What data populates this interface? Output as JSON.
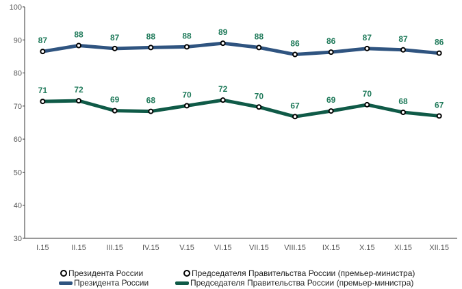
{
  "chart_data": {
    "type": "line",
    "title": "",
    "xlabel": "",
    "ylabel": "",
    "ylim": [
      30,
      100
    ],
    "y_ticks": [
      "100",
      "90",
      "80",
      "70",
      "60",
      "50",
      "40",
      "30"
    ],
    "categories": [
      "I.15",
      "II.15",
      "III.15",
      "IV.15",
      "V.15",
      "VI.15",
      "VII.15",
      "VIII.15",
      "IX.15",
      "X.15",
      "XI.15",
      "XII.15"
    ],
    "series": [
      {
        "name": "Президента России",
        "color": "#2f5480",
        "values": [
          86.5,
          88.3,
          87.4,
          87.7,
          87.9,
          89.0,
          87.7,
          85.6,
          86.3,
          87.4,
          87.0,
          86.0
        ],
        "labels": [
          "87",
          "88",
          "87",
          "88",
          "88",
          "89",
          "88",
          "86",
          "86",
          "87",
          "87",
          "86"
        ]
      },
      {
        "name": "Председателя Правительства России (премьер-министра)",
        "color": "#0f5a47",
        "values": [
          71.4,
          71.6,
          68.6,
          68.4,
          70.1,
          71.8,
          69.7,
          66.8,
          68.5,
          70.4,
          68.1,
          67.0
        ],
        "labels": [
          "71",
          "72",
          "69",
          "68",
          "70",
          "72",
          "70",
          "67",
          "69",
          "70",
          "68",
          "67"
        ]
      }
    ],
    "legend_position": "bottom",
    "grid": false
  }
}
